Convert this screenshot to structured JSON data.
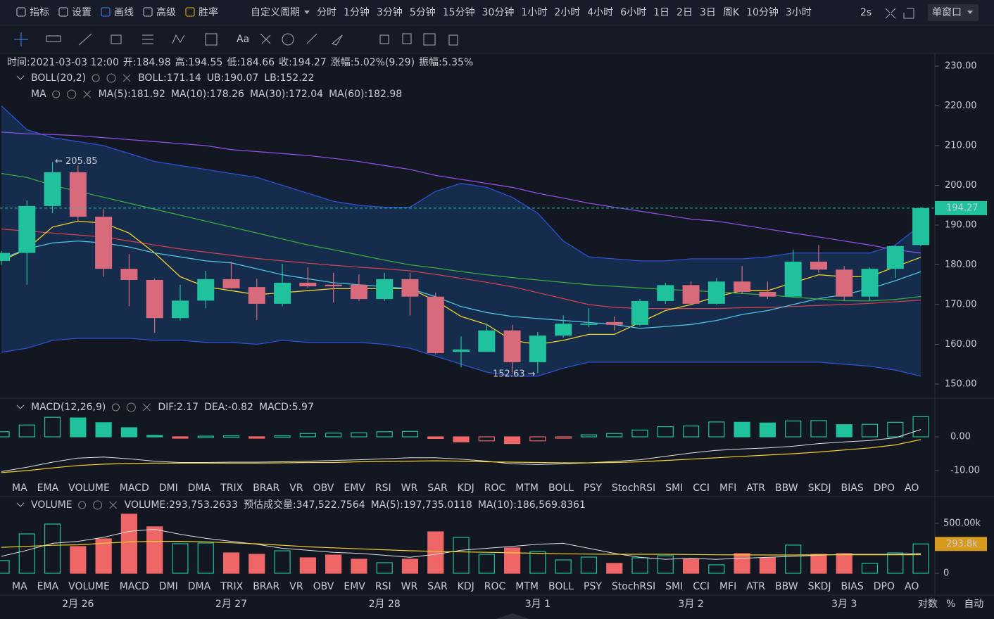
{
  "toolbar": {
    "tools": [
      {
        "text": "指标",
        "color": "#c9ccd4"
      },
      {
        "text": "设置",
        "color": "#c9ccd4"
      },
      {
        "text": "画线",
        "color": "#3d8bff"
      },
      {
        "text": "高级",
        "color": "#c9ccd4"
      },
      {
        "text": "胜率",
        "color": "#f0b90b"
      }
    ],
    "period_label": "自定义周期",
    "periods": [
      {
        "text": "分时"
      },
      {
        "text": "1分钟"
      },
      {
        "text": "3分钟"
      },
      {
        "text": "5分钟"
      },
      {
        "text": "15分钟"
      },
      {
        "text": "30分钟"
      },
      {
        "text": "1小时"
      },
      {
        "text": "2小时"
      },
      {
        "text": "4小时",
        "active": true
      },
      {
        "text": "6小时"
      },
      {
        "text": "1日"
      },
      {
        "text": "2日"
      },
      {
        "text": "3日"
      },
      {
        "text": "周K"
      },
      {
        "text": "10分钟"
      },
      {
        "text": "3小时"
      }
    ],
    "interval": "2s",
    "window": "单窗口",
    "font_tool": "Aa"
  },
  "header": [
    {
      "label": "时间:",
      "value": "2021-03-03 12:00"
    },
    {
      "label": "开:",
      "value": "184.98"
    },
    {
      "label": "高:",
      "value": "194.55"
    },
    {
      "label": "低:",
      "value": "184.66"
    },
    {
      "label": "收:",
      "value": "194.27"
    },
    {
      "label": "涨幅:",
      "value": "5.02%(9.29)"
    },
    {
      "label": "振幅:",
      "value": "5.35%"
    }
  ],
  "boll_legend": {
    "name": "BOLL(20,2)",
    "items": [
      {
        "text": "BOLL:171.14",
        "color": "#e84a5f"
      },
      {
        "text": "UB:190.07",
        "color": "#2d5fd0"
      },
      {
        "text": "LB:152.22",
        "color": "#2d5fd0"
      }
    ]
  },
  "ma_legend": {
    "name": "MA",
    "items": [
      {
        "text": "MA(5):181.92",
        "color": "#f5d327"
      },
      {
        "text": "MA(10):178.26",
        "color": "#4fc3df"
      },
      {
        "text": "MA(30):172.04",
        "color": "#3cab3c"
      },
      {
        "text": "MA(60):182.98",
        "color": "#8a4fe0"
      }
    ]
  },
  "price": {
    "ylim": [
      150,
      230
    ],
    "yticks": [
      {
        "value": 230,
        "label": "230.00"
      },
      {
        "value": 220,
        "label": "220.00"
      },
      {
        "value": 210,
        "label": "210.00"
      },
      {
        "value": 200,
        "label": "200.00"
      },
      {
        "value": 190,
        "label": "190.00"
      },
      {
        "value": 180,
        "label": "180.00"
      },
      {
        "value": 170,
        "label": "170.00"
      },
      {
        "value": 160,
        "label": "160.00"
      },
      {
        "value": 150,
        "label": "150.00"
      }
    ],
    "up_color": "#1fc29c",
    "down_color": "#d86a7c",
    "candles": {
      "open": [
        181,
        183,
        194.8,
        203.3,
        192.1,
        179,
        176.2,
        166.6,
        171,
        176.4,
        174.4,
        170.2,
        175.5,
        175,
        175,
        171.4,
        176.4,
        172,
        158.1,
        158.1,
        163.5,
        155.5,
        162.2,
        164.9,
        165.6,
        164.9,
        170.9,
        174.9,
        170.2,
        175.8,
        173.2,
        172,
        180.8,
        178.8,
        172,
        179,
        184.98
      ],
      "high": [
        183.5,
        196.2,
        205.85,
        205,
        194,
        182.7,
        176.5,
        175,
        178.5,
        180.8,
        176.5,
        180.3,
        179.4,
        178,
        177.6,
        178,
        178,
        173,
        162,
        165.2,
        164.9,
        163.1,
        167.3,
        169.1,
        167,
        171.4,
        175.5,
        175.8,
        176.7,
        179.7,
        175.8,
        183.8,
        185,
        179.7,
        179.3,
        184.9,
        194.55
      ],
      "low": [
        180,
        175,
        193,
        191,
        177,
        169.6,
        162.9,
        166,
        169.1,
        174,
        166.1,
        169.6,
        174.1,
        170.5,
        170.9,
        170.9,
        167.3,
        157.5,
        154.2,
        158.1,
        152.63,
        152.8,
        161.7,
        164.3,
        163.5,
        164.6,
        170.2,
        170,
        170,
        172.7,
        171.4,
        171.8,
        178,
        170.9,
        171,
        176.7,
        184.66
      ],
      "close": [
        183,
        194.8,
        203.3,
        192.1,
        179,
        176.2,
        166.6,
        171,
        176.4,
        174.1,
        170.2,
        175.5,
        174.6,
        174.6,
        171.4,
        176.4,
        172,
        157.8,
        158.7,
        163.5,
        155.5,
        162.2,
        165.2,
        165.2,
        164.9,
        170.9,
        174.9,
        170.2,
        175.8,
        173.2,
        172,
        180.8,
        178.8,
        172,
        179,
        184.7,
        194.27
      ]
    },
    "boll": {
      "band_color": "#1f5aa8",
      "line_color": "#2f50d0",
      "mid_color": "#d8404d",
      "upper": [
        220,
        214,
        212,
        211,
        210,
        208,
        206,
        205,
        204,
        203,
        202,
        200,
        198,
        196,
        195,
        194.5,
        194.5,
        198.5,
        200.5,
        199.5,
        197,
        193,
        186,
        182,
        181.5,
        181,
        181,
        181.5,
        181.5,
        181.5,
        182,
        183,
        183,
        183,
        183,
        185,
        190
      ],
      "mid": [
        189,
        188.5,
        188,
        187.5,
        187,
        186,
        185,
        184,
        183.2,
        182.4,
        181.6,
        181,
        180.4,
        179.9,
        179.4,
        179,
        178.5,
        177.6,
        176.6,
        175.6,
        174.5,
        173,
        171.5,
        170,
        169.3,
        169,
        169,
        169,
        169,
        169.2,
        169.3,
        169.5,
        169.8,
        170,
        170.3,
        170.7,
        171.14
      ],
      "lower": [
        158,
        159,
        161,
        161.5,
        161.5,
        161.5,
        161,
        161,
        160.5,
        160.5,
        160,
        161,
        160.5,
        160.5,
        160.5,
        160,
        159,
        157,
        155,
        153,
        152,
        152,
        154,
        155.5,
        155.5,
        155.5,
        155.5,
        155.5,
        155.5,
        155.5,
        155.5,
        155.5,
        155.5,
        155,
        154.5,
        153.5,
        152
      ]
    },
    "ma": [
      {
        "color": "#f5d327",
        "values": [
          181,
          184,
          189.5,
          191,
          190.5,
          188,
          183,
          177,
          174.5,
          173.5,
          172.5,
          173,
          173.5,
          174,
          174,
          174,
          174,
          171,
          167,
          165,
          161,
          160,
          161,
          162.5,
          162.5,
          165.5,
          168.5,
          170,
          172,
          173.5,
          173.5,
          175.5,
          177.5,
          177,
          177,
          179.5,
          181.92
        ]
      },
      {
        "color": "#4fc3df",
        "values": [
          181.5,
          184,
          185.5,
          186,
          185.5,
          184.5,
          183,
          182,
          181,
          180.5,
          179,
          177.5,
          176.5,
          175.5,
          175,
          174.5,
          174,
          172,
          169.5,
          168,
          167,
          166.5,
          166,
          165.5,
          165,
          164,
          164.5,
          165,
          166,
          167.5,
          168.5,
          170,
          171.5,
          172.5,
          174,
          176,
          178.26
        ]
      },
      {
        "color": "#3cab3c",
        "values": [
          203,
          202,
          200,
          198.5,
          197,
          195.5,
          194,
          192.5,
          191,
          189.5,
          188,
          186.5,
          185,
          183.8,
          182.5,
          181.2,
          180,
          179.2,
          178.3,
          177.5,
          176.8,
          176.2,
          175.6,
          175,
          174.6,
          174.2,
          173.8,
          173.5,
          173.2,
          172.8,
          172.4,
          171.9,
          171.4,
          171,
          170.9,
          171.3,
          172.04
        ]
      },
      {
        "color": "#8a4fe0",
        "values": [
          213.4,
          213,
          212.8,
          212.5,
          212,
          211.5,
          211,
          210.5,
          210,
          209,
          208.5,
          208,
          207.5,
          206.8,
          206,
          205,
          204,
          202.5,
          201.5,
          200.5,
          199.5,
          198,
          196.8,
          195.5,
          194.5,
          193.5,
          192.5,
          191.5,
          191,
          190,
          189,
          188,
          187,
          186,
          185,
          183.8,
          182.98
        ]
      }
    ],
    "last_label": "194.27",
    "high_note": "← 205.85",
    "low_note": "152.63 →"
  },
  "macd": {
    "legend": {
      "name": "MACD(12,26,9)",
      "items": [
        {
          "text": "DIF:2.17",
          "color": "#e0e0e0"
        },
        {
          "text": "DEA:-0.82",
          "color": "#f5d327"
        },
        {
          "text": "MACD:5.97",
          "color": "#1fc29c"
        }
      ]
    },
    "yticks": [
      {
        "value": 0,
        "label": "0.00"
      },
      {
        "value": -10,
        "label": "-10.00"
      }
    ],
    "hist": [
      1.5,
      3.5,
      5.8,
      5.6,
      4.2,
      2.7,
      0.4,
      -0.2,
      0.2,
      0.3,
      -0.2,
      0.3,
      1,
      1.1,
      1.2,
      1.5,
      1.6,
      -0.5,
      -1.5,
      -1.2,
      -2,
      -1.2,
      -0.3,
      0.6,
      1,
      2,
      3,
      3.2,
      4.4,
      4.3,
      4.1,
      4.7,
      4.8,
      3.6,
      3.7,
      4.3,
      5.97
    ],
    "dif": [
      -10.3,
      -9,
      -7.5,
      -6.3,
      -6,
      -6.5,
      -7.2,
      -7.6,
      -7.6,
      -7.5,
      -7.5,
      -7.4,
      -7.2,
      -7,
      -6.8,
      -6.5,
      -6.2,
      -6.2,
      -6.6,
      -7.2,
      -8,
      -8.2,
      -8,
      -7.7,
      -7.3,
      -6.8,
      -5.8,
      -4.8,
      -4,
      -3.6,
      -3.3,
      -2.8,
      -2,
      -1.5,
      -1.1,
      -0.3,
      2.17
    ],
    "dea": [
      -10.6,
      -10,
      -9.2,
      -8.5,
      -8.1,
      -7.9,
      -7.8,
      -7.8,
      -7.8,
      -7.8,
      -7.8,
      -7.7,
      -7.6,
      -7.6,
      -7.4,
      -7.3,
      -7.2,
      -7.1,
      -7.2,
      -7.4,
      -7.5,
      -7.6,
      -7.7,
      -7.7,
      -7.6,
      -7.4,
      -7,
      -6.6,
      -6.2,
      -5.8,
      -5.4,
      -5,
      -4.5,
      -3.9,
      -3.3,
      -2.4,
      -0.82
    ],
    "dif_color": "#e0e0e0",
    "dea_color": "#f5d327",
    "up_color": "#1fc29c",
    "down_color": "#ef6666"
  },
  "macd_tabs": [
    {
      "text": "MA"
    },
    {
      "text": "EMA"
    },
    {
      "text": "VOLUME",
      "state": "dim"
    },
    {
      "text": "MACD",
      "state": "active"
    },
    {
      "text": "DMI"
    },
    {
      "text": "DMA"
    },
    {
      "text": "TRIX"
    },
    {
      "text": "BRAR"
    },
    {
      "text": "VR"
    },
    {
      "text": "OBV"
    },
    {
      "text": "EMV"
    },
    {
      "text": "RSI"
    },
    {
      "text": "WR"
    },
    {
      "text": "SAR"
    },
    {
      "text": "KDJ"
    },
    {
      "text": "ROC"
    },
    {
      "text": "MTM"
    },
    {
      "text": "BOLL"
    },
    {
      "text": "PSY"
    },
    {
      "text": "StochRSI"
    },
    {
      "text": "SMI"
    },
    {
      "text": "CCI"
    },
    {
      "text": "MFI"
    },
    {
      "text": "ATR"
    },
    {
      "text": "BBW"
    },
    {
      "text": "SKDJ"
    },
    {
      "text": "BIAS"
    },
    {
      "text": "DPO"
    },
    {
      "text": "AO"
    }
  ],
  "volume": {
    "legend": {
      "name": "VOLUME",
      "items": [
        {
          "text": "VOLUME:293,753.2633",
          "color": "#e0e0e0"
        },
        {
          "text": "预估成交量:347,522.7564",
          "color": "#5c6170"
        },
        {
          "text": "MA(5):197,735.0118",
          "color": "#e0e0e0"
        },
        {
          "text": "MA(10):186,569.8361",
          "color": "#f5d327"
        }
      ]
    },
    "yticks": [
      {
        "value": 500000,
        "label": "500.00k"
      },
      0
    ],
    "values": [
      127000,
      394000,
      493000,
      268000,
      345000,
      592000,
      465000,
      296000,
      303000,
      204000,
      190000,
      225000,
      155000,
      183000,
      141000,
      106000,
      141000,
      415000,
      359000,
      190000,
      254000,
      218000,
      134000,
      162000,
      99000,
      155000,
      176000,
      141000,
      85000,
      197000,
      155000,
      282000,
      190000,
      197000,
      99000,
      204000,
      293753.2633
    ],
    "ma5": [
      170000,
      230000,
      300000,
      320000,
      360000,
      420000,
      440000,
      390000,
      350000,
      320000,
      290000,
      250000,
      230000,
      210000,
      200000,
      180000,
      160000,
      190000,
      230000,
      250000,
      270000,
      290000,
      300000,
      250000,
      200000,
      160000,
      140000,
      150000,
      140000,
      150000,
      160000,
      170000,
      180000,
      190000,
      190000,
      190000,
      197735.0118
    ],
    "ma10": [
      260000,
      270000,
      280000,
      285000,
      300000,
      315000,
      320000,
      320000,
      315000,
      305000,
      295000,
      280000,
      265000,
      255000,
      245000,
      235000,
      225000,
      220000,
      215000,
      210000,
      205000,
      200000,
      195000,
      192000,
      190000,
      190000,
      190000,
      188000,
      185000,
      184000,
      183000,
      183000,
      185000,
      186000,
      186000,
      186000,
      186569.8361
    ],
    "ma5_color": "#e0e0e0",
    "ma10_color": "#f5d327",
    "last_label": "293.8k",
    "label_color": "#d79a1c"
  },
  "volume_tabs": [
    {
      "text": "MA"
    },
    {
      "text": "EMA"
    },
    {
      "text": "VOLUME",
      "state": "active"
    },
    {
      "text": "MACD",
      "state": "dim"
    },
    {
      "text": "DMI"
    },
    {
      "text": "DMA"
    },
    {
      "text": "TRIX"
    },
    {
      "text": "BRAR"
    },
    {
      "text": "VR"
    },
    {
      "text": "OBV"
    },
    {
      "text": "EMV"
    },
    {
      "text": "RSI"
    },
    {
      "text": "WR"
    },
    {
      "text": "SAR"
    },
    {
      "text": "KDJ"
    },
    {
      "text": "ROC"
    },
    {
      "text": "MTM"
    },
    {
      "text": "BOLL"
    },
    {
      "text": "PSY"
    },
    {
      "text": "StochRSI"
    },
    {
      "text": "SMI"
    },
    {
      "text": "CCI"
    },
    {
      "text": "MFI"
    },
    {
      "text": "ATR"
    },
    {
      "text": "BBW"
    },
    {
      "text": "SKDJ"
    },
    {
      "text": "BIAS"
    },
    {
      "text": "DPO"
    },
    {
      "text": "AO"
    }
  ],
  "dates": [
    "2月 26",
    "2月 27",
    "2月 28",
    "3月 1",
    "3月 2",
    "3月 3"
  ],
  "footer": [
    {
      "text": "对数",
      "color": "#c9ccd4"
    },
    {
      "text": "%",
      "color": "#c9ccd4"
    },
    {
      "text": "自动",
      "color": "#3d8bff"
    }
  ]
}
